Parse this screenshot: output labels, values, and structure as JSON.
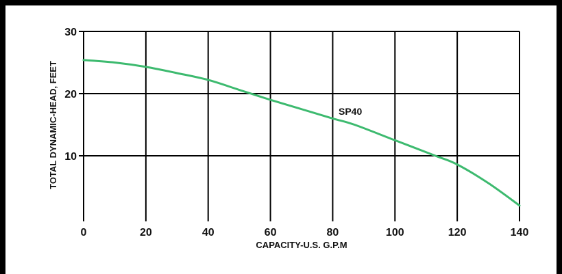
{
  "chart_data": {
    "type": "line",
    "xlabel": "CAPACITY-U.S. G.P.M",
    "ylabel": "TOTAL DYNAMIC-HEAD, FEET",
    "xlim": [
      0,
      140
    ],
    "ylim": [
      0,
      30
    ],
    "x_ticks": [
      0,
      20,
      40,
      60,
      80,
      100,
      120,
      140
    ],
    "y_ticks": [
      10,
      20,
      30
    ],
    "grid": true,
    "series": [
      {
        "name": "SP40",
        "color": "#3dba6f",
        "x": [
          0,
          10,
          20,
          30,
          40,
          50,
          60,
          70,
          80,
          87,
          100,
          113,
          120,
          130,
          140
        ],
        "y": [
          25.4,
          25.0,
          24.3,
          23.3,
          22.2,
          20.6,
          19.0,
          17.5,
          16.0,
          15.0,
          12.5,
          10.0,
          8.6,
          5.6,
          2.0
        ]
      }
    ]
  },
  "colors": {
    "frame": "#000000",
    "grid": "#000000",
    "curve": "#3dba6f",
    "text": "#111111"
  }
}
